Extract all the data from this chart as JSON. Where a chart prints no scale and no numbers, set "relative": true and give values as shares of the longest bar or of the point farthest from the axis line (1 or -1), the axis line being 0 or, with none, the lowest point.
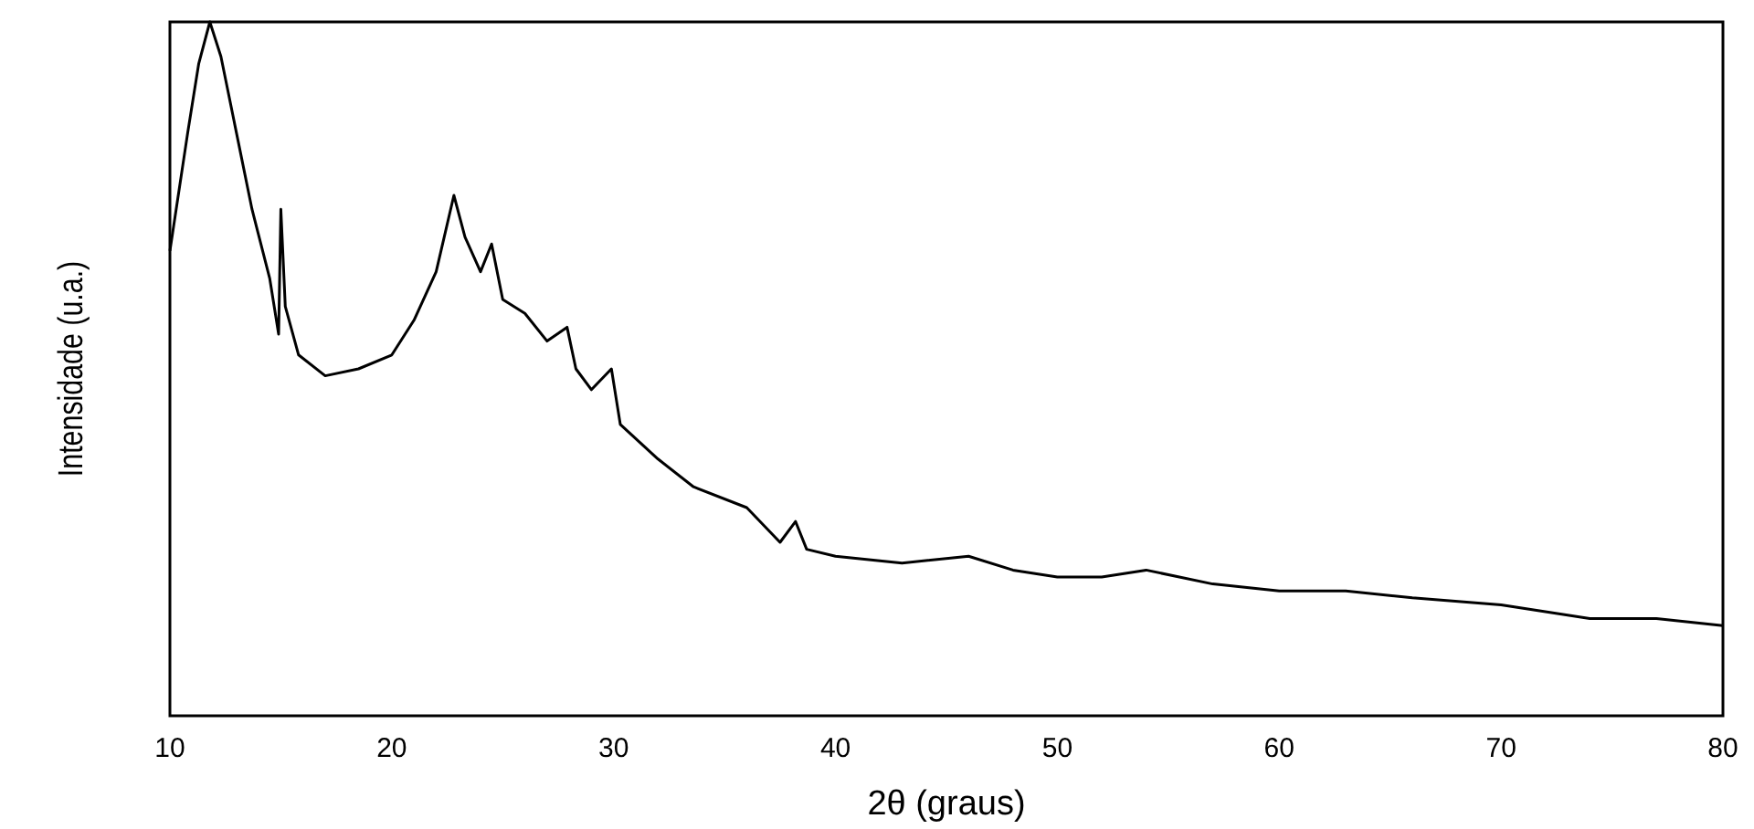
{
  "chart_data": {
    "type": "line",
    "xlabel": "2θ (graus)",
    "ylabel": "Intensidade (u.a.)",
    "relative": true,
    "tick_labels": "x",
    "xlim": [
      10,
      80
    ],
    "xticks": [
      10,
      20,
      30,
      40,
      50,
      60,
      70,
      80
    ],
    "line_style": "solid",
    "series": [
      {
        "color": "#000000",
        "x": [
          10,
          10.8,
          11.3,
          11.8,
          12.3,
          13,
          13.7,
          14.5,
          14.9,
          15.0,
          15.2,
          15.8,
          17,
          18.5,
          20,
          21,
          22,
          22.8,
          23.3,
          24,
          24.5,
          25,
          26,
          27,
          27.9,
          28.3,
          29,
          29.9,
          30.3,
          32,
          33.6,
          36,
          37.5,
          38.2,
          38.7,
          40,
          43,
          46,
          48,
          50,
          52,
          54,
          57,
          60,
          63,
          66,
          70,
          74,
          77,
          80
        ],
        "values": [
          0.67,
          0.84,
          0.94,
          1.0,
          0.95,
          0.84,
          0.73,
          0.63,
          0.55,
          0.73,
          0.59,
          0.52,
          0.49,
          0.5,
          0.52,
          0.57,
          0.64,
          0.75,
          0.69,
          0.64,
          0.68,
          0.6,
          0.58,
          0.54,
          0.56,
          0.5,
          0.47,
          0.5,
          0.42,
          0.37,
          0.33,
          0.3,
          0.25,
          0.28,
          0.24,
          0.23,
          0.22,
          0.23,
          0.21,
          0.2,
          0.2,
          0.21,
          0.19,
          0.18,
          0.18,
          0.17,
          0.16,
          0.14,
          0.14,
          0.13
        ]
      }
    ]
  }
}
